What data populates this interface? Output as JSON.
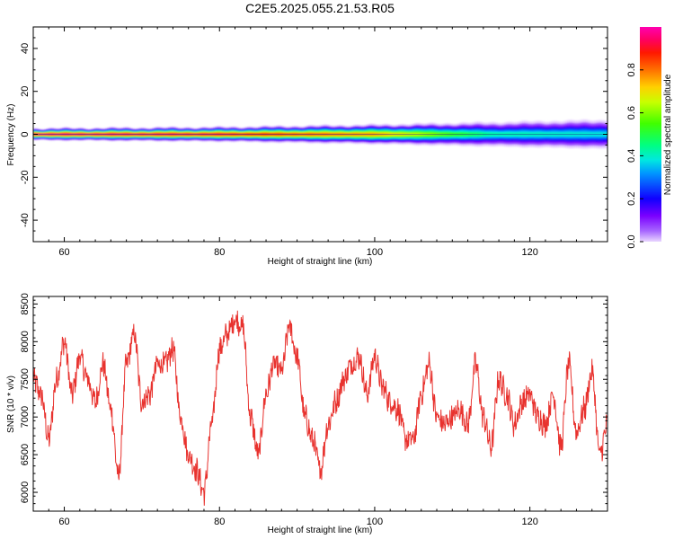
{
  "title": "C2E5.2025.055.21.53.R05",
  "colors": {
    "snr_line": "#e8322e",
    "band_core": "#e0004a",
    "frame": "#000000"
  },
  "chart_data": [
    {
      "type": "heatmap",
      "xlabel": "Height of straight line (km)",
      "ylabel": "Frequency (Hz)",
      "xlim": [
        56,
        130
      ],
      "ylim": [
        -50,
        50
      ],
      "xticks": [
        60,
        80,
        100,
        120
      ],
      "yticks": [
        -40,
        -20,
        0,
        20,
        40
      ],
      "colorbar": {
        "label": "Normalized spectral amplitude",
        "range": [
          0,
          1
        ],
        "ticks": [
          "0.0",
          "0.2",
          "0.4",
          "0.6",
          "0.8"
        ],
        "colormap": "rainbow (violet-blue-cyan-green-yellow-red-magenta)"
      },
      "description_points": [
        {
          "x": 56,
          "peak_amplitude": 1.0,
          "halfwidth_hz": 2.5
        },
        {
          "x": 80,
          "peak_amplitude": 0.95,
          "halfwidth_hz": 3.0
        },
        {
          "x": 100,
          "peak_amplitude": 0.8,
          "halfwidth_hz": 4.0
        },
        {
          "x": 115,
          "peak_amplitude": 0.45,
          "halfwidth_hz": 5.0
        },
        {
          "x": 130,
          "peak_amplitude": 0.4,
          "halfwidth_hz": 6.0
        }
      ]
    },
    {
      "type": "line",
      "xlabel": "Height of straight line (km)",
      "ylabel": "SNR (10 * v/v)",
      "xlim": [
        56,
        130
      ],
      "ylim": [
        5750,
        8600
      ],
      "xticks": [
        60,
        80,
        100,
        120
      ],
      "yticks": [
        6000,
        6500,
        7000,
        7500,
        8000,
        8500
      ],
      "series": [
        {
          "x": [
            56,
            57,
            58,
            59,
            60,
            61,
            62,
            63,
            64,
            65,
            66,
            67,
            68,
            69,
            70,
            71,
            72,
            73,
            74,
            75,
            76,
            77,
            78,
            79,
            80,
            81,
            82,
            83,
            84,
            85,
            86,
            87,
            88,
            89,
            90,
            91,
            92,
            93,
            94,
            95,
            96,
            97,
            98,
            99,
            100,
            101,
            102,
            103,
            104,
            105,
            106,
            107,
            108,
            109,
            110,
            111,
            112,
            113,
            114,
            115,
            116,
            117,
            118,
            119,
            120,
            121,
            122,
            123,
            124,
            125,
            126,
            127,
            128,
            129,
            130
          ],
          "y": [
            7500,
            7300,
            6700,
            7500,
            8000,
            7300,
            7800,
            7500,
            7200,
            7700,
            7100,
            6200,
            7700,
            8100,
            7200,
            7300,
            7700,
            7700,
            7900,
            7000,
            6500,
            6300,
            6000,
            6900,
            7900,
            8100,
            8300,
            8200,
            7000,
            6500,
            7300,
            7700,
            7600,
            8200,
            7800,
            7000,
            6700,
            6300,
            6900,
            7200,
            7500,
            7700,
            7800,
            7300,
            7800,
            7400,
            7200,
            7100,
            6700,
            6700,
            7300,
            7700,
            7000,
            6900,
            7000,
            7100,
            6900,
            7700,
            7000,
            6600,
            7500,
            7300,
            6900,
            7200,
            7300,
            7000,
            6900,
            7300,
            6600,
            7700,
            6800,
            7100,
            7600,
            6500,
            6900
          ]
        }
      ]
    }
  ]
}
